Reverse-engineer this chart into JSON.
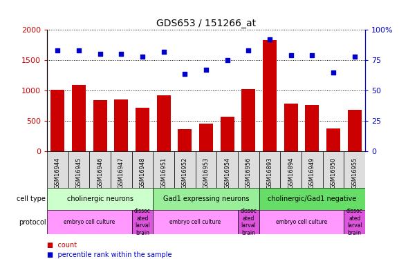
{
  "title": "GDS653 / 151266_at",
  "samples": [
    "GSM16944",
    "GSM16945",
    "GSM16946",
    "GSM16947",
    "GSM16948",
    "GSM16951",
    "GSM16952",
    "GSM16953",
    "GSM16954",
    "GSM16956",
    "GSM16893",
    "GSM16894",
    "GSM16949",
    "GSM16950",
    "GSM16955"
  ],
  "counts": [
    1010,
    1090,
    840,
    850,
    720,
    920,
    370,
    460,
    570,
    1020,
    1830,
    790,
    770,
    380,
    690
  ],
  "percentiles": [
    83,
    83,
    80,
    80,
    78,
    82,
    64,
    67,
    75,
    83,
    92,
    79,
    79,
    65,
    78
  ],
  "bar_color": "#cc0000",
  "dot_color": "#0000cc",
  "ylim_left": [
    0,
    2000
  ],
  "ylim_right": [
    0,
    100
  ],
  "yticks_left": [
    0,
    500,
    1000,
    1500,
    2000
  ],
  "yticks_right": [
    0,
    25,
    50,
    75,
    100
  ],
  "ytick_labels_right": [
    "0",
    "25",
    "50",
    "75",
    "100%"
  ],
  "cell_type_groups": [
    {
      "label": "cholinergic neurons",
      "start": 0,
      "end": 5,
      "color": "#ccffcc"
    },
    {
      "label": "Gad1 expressing neurons",
      "start": 5,
      "end": 10,
      "color": "#99ee99"
    },
    {
      "label": "cholinergic/Gad1 negative",
      "start": 10,
      "end": 15,
      "color": "#66dd66"
    }
  ],
  "protocol_groups": [
    {
      "label": "embryo cell culture",
      "start": 0,
      "end": 4,
      "color": "#ff99ff"
    },
    {
      "label": "dissoc\nated\nlarval\nbrain",
      "start": 4,
      "end": 5,
      "color": "#dd55dd"
    },
    {
      "label": "embryo cell culture",
      "start": 5,
      "end": 9,
      "color": "#ff99ff"
    },
    {
      "label": "dissoc\nated\nlarval\nbrain",
      "start": 9,
      "end": 10,
      "color": "#dd55dd"
    },
    {
      "label": "embryo cell culture",
      "start": 10,
      "end": 14,
      "color": "#ff99ff"
    },
    {
      "label": "dissoc\nated\nlarval\nbrain",
      "start": 14,
      "end": 15,
      "color": "#dd55dd"
    }
  ],
  "legend_count_color": "#cc0000",
  "legend_dot_color": "#0000cc"
}
